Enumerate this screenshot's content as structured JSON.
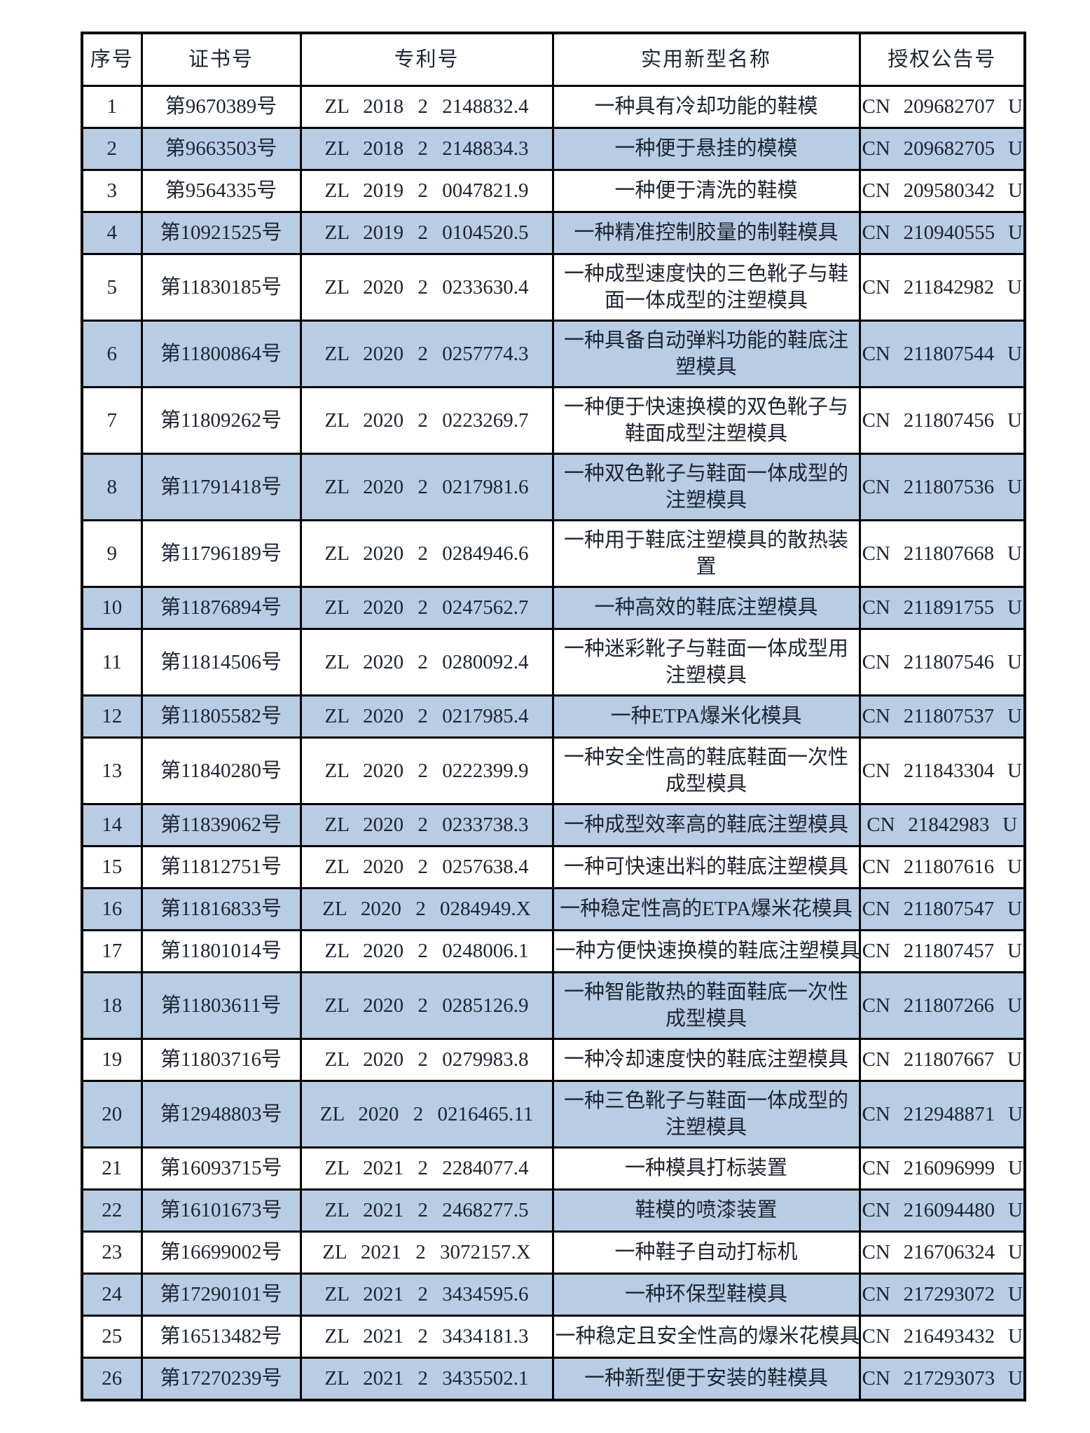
{
  "page": {
    "background": "#ffffff"
  },
  "table": {
    "colors": {
      "header_fill": "#b8cce4",
      "alt_row_fill": "#b8cce4",
      "row_fill": "#ffffff",
      "border": "#000000",
      "text": "#1c2430"
    },
    "headers": [
      "序号",
      "证书号",
      "专利号",
      "实用新型名称",
      "授权公告号"
    ],
    "header_keys": [
      "serial",
      "certificate-no",
      "patent-no",
      "utility-model-name",
      "publication-no"
    ],
    "rows": [
      {
        "no": "1",
        "certificate": "第9670389号",
        "patent": "ZL 2018 2 2148832.4",
        "name": "一种具有冷却功能的鞋模",
        "publication": "CN 209682707 U",
        "lines": 1
      },
      {
        "no": "2",
        "certificate": "第9663503号",
        "patent": "ZL 2018 2 2148834.3",
        "name": "一种便于悬挂的模模",
        "publication": "CN 209682705 U",
        "lines": 1
      },
      {
        "no": "3",
        "certificate": "第9564335号",
        "patent": "ZL 2019 2 0047821.9",
        "name": "一种便于清洗的鞋模",
        "publication": "CN 209580342 U",
        "lines": 1
      },
      {
        "no": "4",
        "certificate": "第10921525号",
        "patent": "ZL 2019 2 0104520.5",
        "name": "一种精准控制胶量的制鞋模具",
        "publication": "CN 210940555 U",
        "lines": 1
      },
      {
        "no": "5",
        "certificate": "第11830185号",
        "patent": "ZL 2020 2 0233630.4",
        "name": "一种成型速度快的三色靴子与鞋面一体成型的注塑模具",
        "publication": "CN 211842982 U",
        "lines": 2
      },
      {
        "no": "6",
        "certificate": "第11800864号",
        "patent": "ZL 2020 2 0257774.3",
        "name": "一种具备自动弹料功能的鞋底注塑模具",
        "publication": "CN 211807544 U",
        "lines": 2
      },
      {
        "no": "7",
        "certificate": "第11809262号",
        "patent": "ZL 2020 2 0223269.7",
        "name": "一种便于快速换模的双色靴子与鞋面成型注塑模具",
        "publication": "CN 211807456 U",
        "lines": 2
      },
      {
        "no": "8",
        "certificate": "第11791418号",
        "patent": "ZL 2020 2 0217981.6",
        "name": "一种双色靴子与鞋面一体成型的注塑模具",
        "publication": "CN 211807536 U",
        "lines": 2
      },
      {
        "no": "9",
        "certificate": "第11796189号",
        "patent": "ZL 2020 2 0284946.6",
        "name": "一种用于鞋底注塑模具的散热装置",
        "publication": "CN 211807668 U",
        "lines": 2
      },
      {
        "no": "10",
        "certificate": "第11876894号",
        "patent": "ZL 2020 2 0247562.7",
        "name": "一种高效的鞋底注塑模具",
        "publication": "CN 211891755 U",
        "lines": 1
      },
      {
        "no": "11",
        "certificate": "第11814506号",
        "patent": "ZL 2020 2 0280092.4",
        "name": "一种迷彩靴子与鞋面一体成型用注塑模具",
        "publication": "CN 211807546 U",
        "lines": 2
      },
      {
        "no": "12",
        "certificate": "第11805582号",
        "patent": "ZL 2020 2 0217985.4",
        "name": "一种ETPA爆米化模具",
        "publication": "CN 211807537 U",
        "lines": 1
      },
      {
        "no": "13",
        "certificate": "第11840280号",
        "patent": "ZL 2020 2 0222399.9",
        "name": "一种安全性高的鞋底鞋面一次性成型模具",
        "publication": "CN 211843304 U",
        "lines": 2
      },
      {
        "no": "14",
        "certificate": "第11839062号",
        "patent": "ZL 2020 2 0233738.3",
        "name": "一种成型效率高的鞋底注塑模具",
        "publication": "CN 21842983 U",
        "lines": 1
      },
      {
        "no": "15",
        "certificate": "第11812751号",
        "patent": "ZL 2020 2 0257638.4",
        "name": "一种可快速出料的鞋底注塑模具",
        "publication": "CN 211807616 U",
        "lines": 1
      },
      {
        "no": "16",
        "certificate": "第11816833号",
        "patent": "ZL 2020 2 0284949.X",
        "name": "一种稳定性高的ETPA爆米花模具",
        "publication": "CN 211807547 U",
        "lines": 1
      },
      {
        "no": "17",
        "certificate": "第11801014号",
        "patent": "ZL 2020 2 0248006.1",
        "name": "一种方便快速换模的鞋底注塑模具",
        "publication": "CN 211807457 U",
        "lines": 1
      },
      {
        "no": "18",
        "certificate": "第11803611号",
        "patent": "ZL 2020 2 0285126.9",
        "name": "一种智能散热的鞋面鞋底一次性成型模具",
        "publication": "CN 211807266 U",
        "lines": 2
      },
      {
        "no": "19",
        "certificate": "第11803716号",
        "patent": "ZL 2020 2 0279983.8",
        "name": "一种冷却速度快的鞋底注塑模具",
        "publication": "CN 211807667 U",
        "lines": 1
      },
      {
        "no": "20",
        "certificate": "第12948803号",
        "patent": "ZL 2020 2 0216465.11",
        "name": "一种三色靴子与鞋面一体成型的注塑模具",
        "publication": "CN 212948871 U",
        "lines": 2
      },
      {
        "no": "21",
        "certificate": "第16093715号",
        "patent": "ZL 2021 2 2284077.4",
        "name": "一种模具打标装置",
        "publication": "CN 216096999 U",
        "lines": 1
      },
      {
        "no": "22",
        "certificate": "第16101673号",
        "patent": "ZL 2021 2 2468277.5",
        "name": "鞋模的喷漆装置",
        "publication": "CN 216094480 U",
        "lines": 1
      },
      {
        "no": "23",
        "certificate": "第16699002号",
        "patent": "ZL 2021 2 3072157.X",
        "name": "一种鞋子自动打标机",
        "publication": "CN 216706324 U",
        "lines": 1
      },
      {
        "no": "24",
        "certificate": "第17290101号",
        "patent": "ZL 2021 2 3434595.6",
        "name": "一种环保型鞋模具",
        "publication": "CN 217293072 U",
        "lines": 1
      },
      {
        "no": "25",
        "certificate": "第16513482号",
        "patent": "ZL 2021 2 3434181.3",
        "name": "一种稳定且安全性高的爆米花模具",
        "publication": "CN 216493432 U",
        "lines": 1
      },
      {
        "no": "26",
        "certificate": "第17270239号",
        "patent": "ZL 2021 2 3435502.1",
        "name": "一种新型便于安装的鞋模具",
        "publication": "CN 217293073 U",
        "lines": 1
      }
    ]
  }
}
